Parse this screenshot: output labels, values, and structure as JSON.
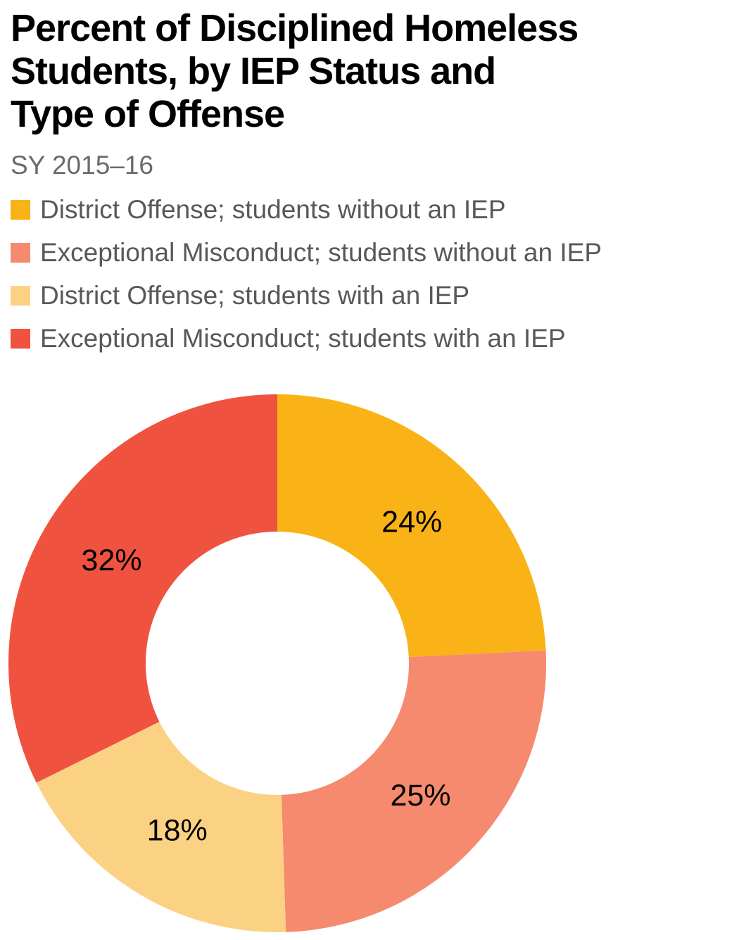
{
  "header": {
    "title_lines": [
      "Percent of Disciplined Homeless",
      "Students, by IEP Status and",
      "Type of Offense"
    ],
    "subtitle": "SY 2015–16"
  },
  "chart_data": {
    "type": "pie",
    "subtype": "donut",
    "title": "Percent of Disciplined Homeless Students, by IEP Status and Type of Offense",
    "subtitle": "SY 2015–16",
    "unit": "%",
    "direction": "clockwise",
    "start_angle_deg": 0,
    "inner_radius_ratio": 0.49,
    "legend_position": "top-left",
    "grid": false,
    "segments": [
      {
        "label": "District Offense; students without an IEP",
        "value": 24,
        "display": "24%",
        "color": "#F9B316"
      },
      {
        "label": "Exceptional Misconduct; students without an IEP",
        "value": 25,
        "display": "25%",
        "color": "#F58A6F"
      },
      {
        "label": "District Offense; students with an IEP",
        "value": 18,
        "display": "18%",
        "color": "#FBD284"
      },
      {
        "label": "Exceptional Misconduct; students with an IEP",
        "value": 32,
        "display": "32%",
        "color": "#EF5340"
      }
    ]
  },
  "colors": {
    "background": "#FFFFFF",
    "title_text": "#000000",
    "subtitle_text": "#6A6A6A",
    "legend_text": "#58585A",
    "slice_label_text": "#000000"
  }
}
